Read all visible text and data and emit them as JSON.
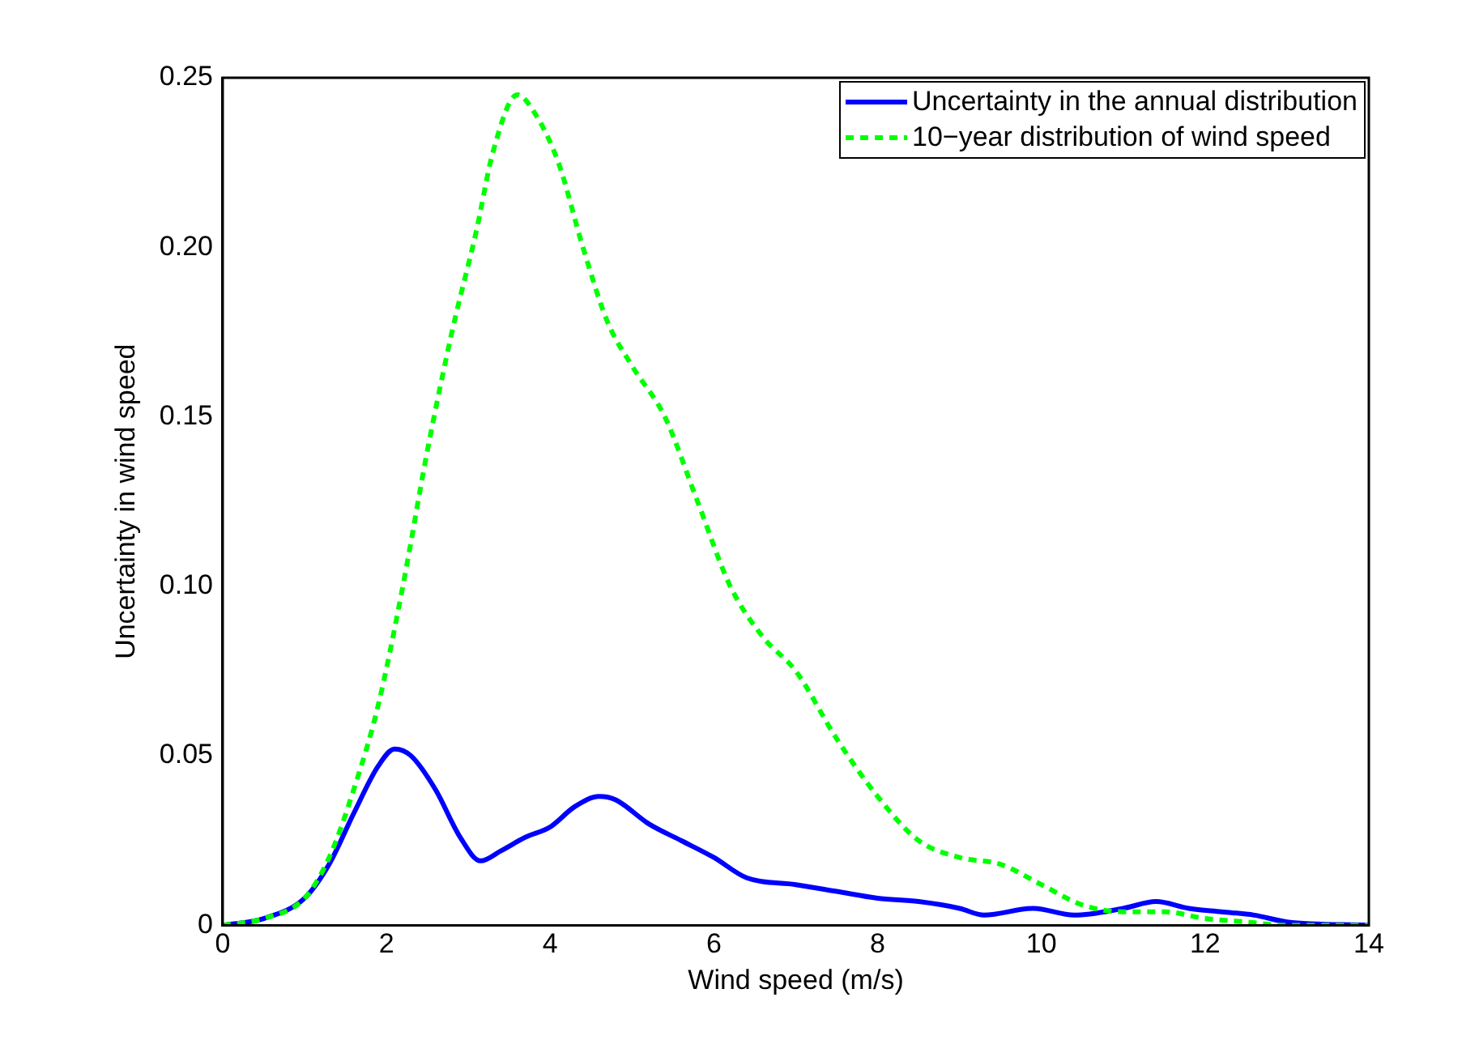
{
  "chart_data": {
    "type": "line",
    "xlabel": "Wind speed (m/s)",
    "ylabel": "Uncertainty in wind speed",
    "xlim": [
      0,
      14
    ],
    "xticks": [
      0,
      2,
      4,
      6,
      8,
      10,
      12,
      14
    ],
    "ylim": [
      0,
      0.25
    ],
    "yticks": [
      {
        "value": 0,
        "label": "0"
      },
      {
        "value": 0.05,
        "label": "0.05"
      },
      {
        "value": 0.1,
        "label": "0.10"
      },
      {
        "value": 0.15,
        "label": "0.15"
      },
      {
        "value": 0.2,
        "label": "0.20"
      },
      {
        "value": 0.25,
        "label": "0.25"
      }
    ],
    "grid": false,
    "legend": "top right",
    "marker": "none",
    "series": [
      {
        "name": "Uncertainty in the annual distribution",
        "color": "#0000ff",
        "line_style": "solid",
        "x": [
          0,
          0.5,
          1,
          1.3,
          1.6,
          1.9,
          2.1,
          2.3,
          2.6,
          2.9,
          3.15,
          3.4,
          3.7,
          4.0,
          4.3,
          4.6,
          4.8,
          5.2,
          5.6,
          6.0,
          6.4,
          7.0,
          7.5,
          8.0,
          8.5,
          9.0,
          9.3,
          9.9,
          10.4,
          11.0,
          11.4,
          11.8,
          12.2,
          12.6,
          13.0,
          14
        ],
        "values": [
          0,
          0.002,
          0.008,
          0.018,
          0.033,
          0.047,
          0.052,
          0.05,
          0.04,
          0.026,
          0.019,
          0.022,
          0.026,
          0.029,
          0.035,
          0.038,
          0.037,
          0.03,
          0.025,
          0.02,
          0.014,
          0.012,
          0.01,
          0.008,
          0.007,
          0.005,
          0.003,
          0.005,
          0.003,
          0.005,
          0.007,
          0.005,
          0.004,
          0.003,
          0.001,
          0
        ]
      },
      {
        "name": "10−year distribution of wind speed",
        "color": "#00ff00",
        "line_style": "dashed",
        "x": [
          0,
          0.5,
          1,
          1.3,
          1.6,
          1.9,
          2.2,
          2.5,
          2.8,
          3.1,
          3.3,
          3.6,
          3.8,
          4.1,
          4.4,
          4.7,
          5.0,
          5.4,
          5.8,
          6.2,
          6.6,
          7.0,
          7.5,
          8.0,
          8.5,
          9.0,
          9.5,
          10.0,
          10.5,
          11,
          11.5,
          12,
          12.5,
          13,
          14
        ],
        "values": [
          0,
          0.002,
          0.008,
          0.02,
          0.04,
          0.065,
          0.1,
          0.14,
          0.175,
          0.205,
          0.228,
          0.245,
          0.24,
          0.225,
          0.2,
          0.178,
          0.165,
          0.15,
          0.125,
          0.1,
          0.085,
          0.075,
          0.055,
          0.038,
          0.025,
          0.02,
          0.018,
          0.012,
          0.006,
          0.004,
          0.004,
          0.002,
          0.001,
          0,
          0
        ]
      }
    ]
  }
}
